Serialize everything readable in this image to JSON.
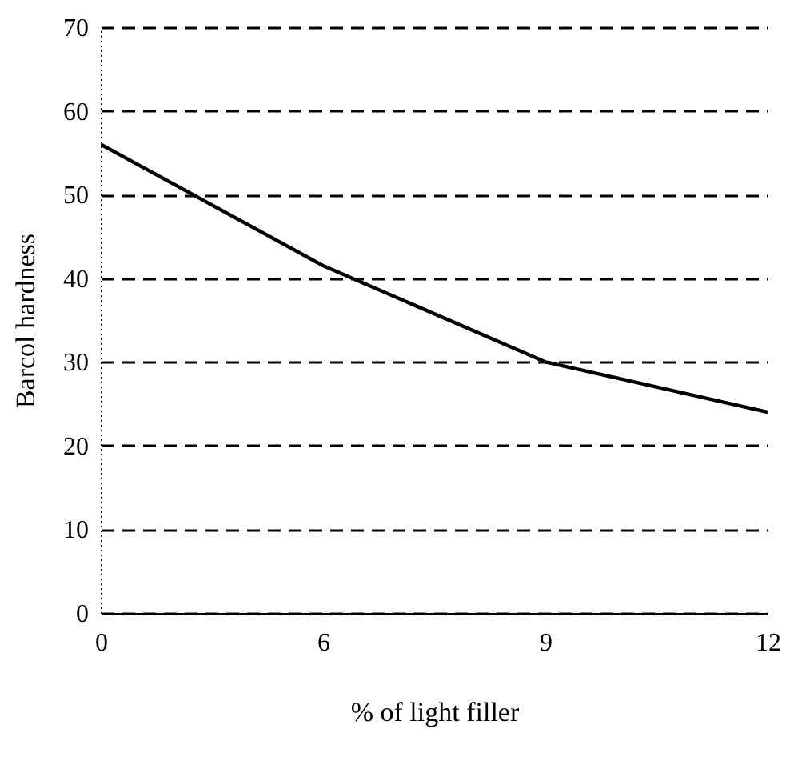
{
  "chart_data": {
    "type": "line",
    "xlabel": "% of light filler",
    "ylabel": "Barcol hardness",
    "categories": [
      "0",
      "6",
      "9",
      "12"
    ],
    "series": [
      {
        "color": "#000000",
        "values": [
          56,
          41.5,
          30,
          24
        ]
      }
    ],
    "ylim": [
      0,
      70
    ],
    "yticks": [
      0,
      10,
      20,
      30,
      40,
      50,
      60,
      70
    ],
    "grid": "y",
    "marker": "none",
    "line_style": "solid"
  }
}
